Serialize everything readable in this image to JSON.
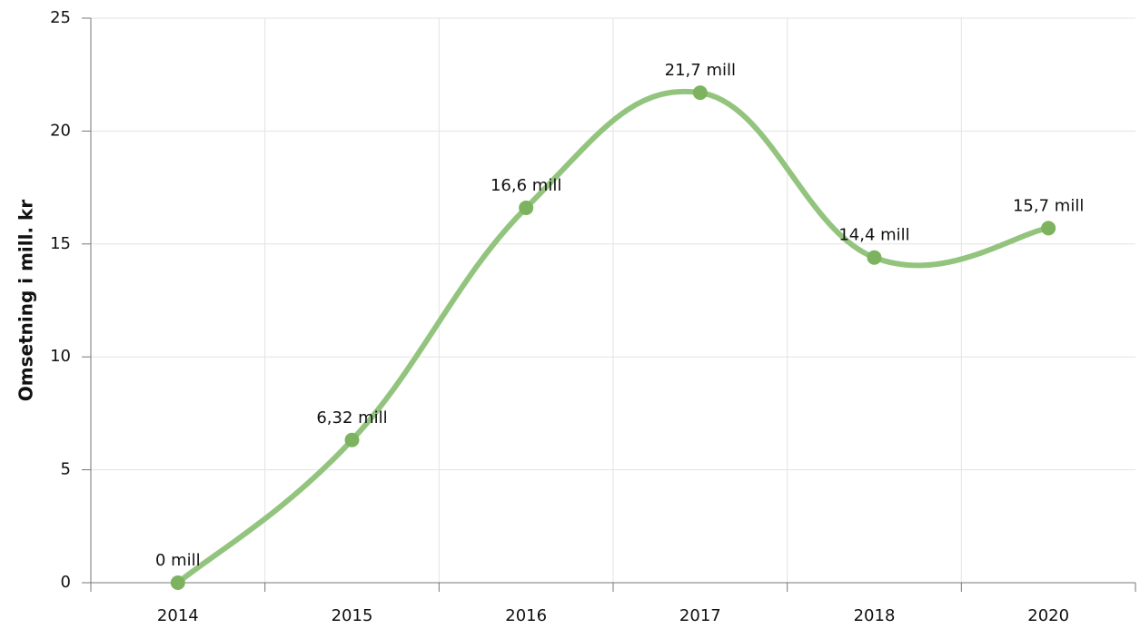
{
  "chart_data": {
    "type": "line",
    "y_label": "Omsetning i mill. kr",
    "categories": [
      "2014",
      "2015",
      "2016",
      "2017",
      "2018",
      "2020"
    ],
    "values": [
      0,
      6.32,
      16.6,
      21.7,
      14.4,
      15.7
    ],
    "value_labels": [
      "0 mill",
      "6,32 mill",
      "16,6 mill",
      "21,7 mill",
      "14,4 mill",
      "15,7 mill"
    ],
    "color": "#93c47d",
    "marker_color": "#7db35f",
    "ylim": [
      0,
      25
    ],
    "yticks": [
      0,
      5,
      10,
      15,
      20,
      25
    ],
    "grid": true,
    "smooth": true
  }
}
